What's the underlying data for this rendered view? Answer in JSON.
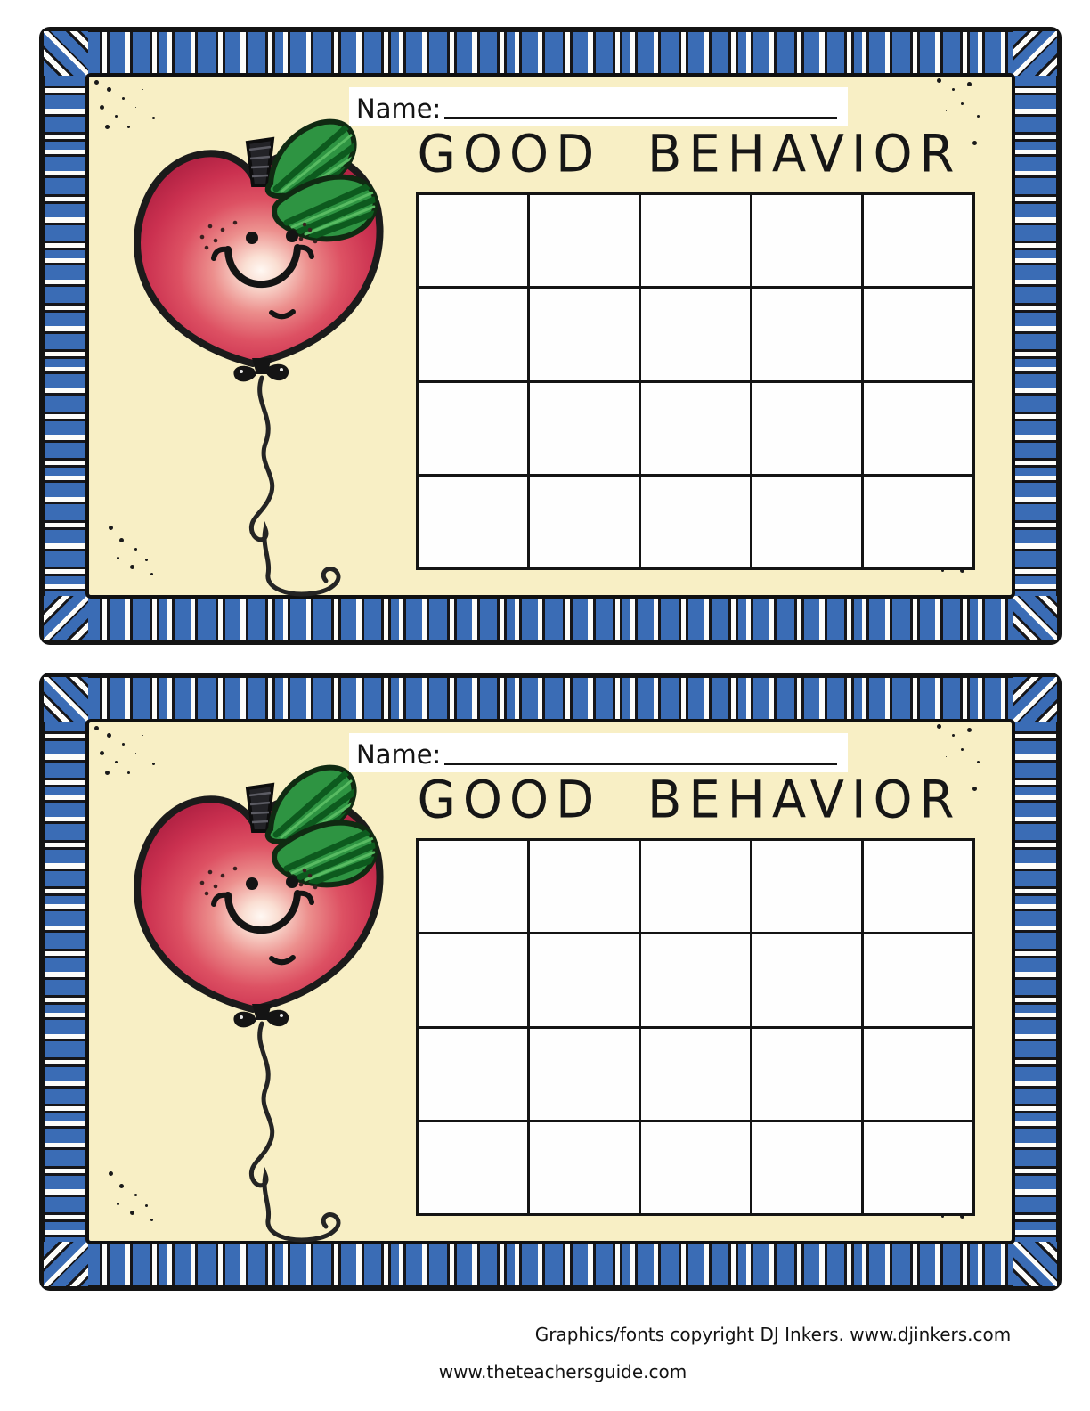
{
  "card": {
    "name_label": "Name:",
    "title": "GOOD BEHAVIOR",
    "grid": {
      "rows": 4,
      "cols": 5
    },
    "icons": {
      "mascot": "apple-balloon-icon"
    },
    "colors": {
      "frame_blue": "#3a6cb5",
      "frame_black": "#16161a",
      "frame_white": "#fdfdfa",
      "paper_cream": "#f8efc5",
      "cell_white": "#fefefe",
      "apple_red": "#d23a52",
      "leaf_green": "#2e9442"
    }
  },
  "cards_count": 2,
  "footer": {
    "credit": "Graphics/fonts copyright DJ Inkers. www.djinkers.com",
    "site": "www.theteachersguide.com"
  }
}
